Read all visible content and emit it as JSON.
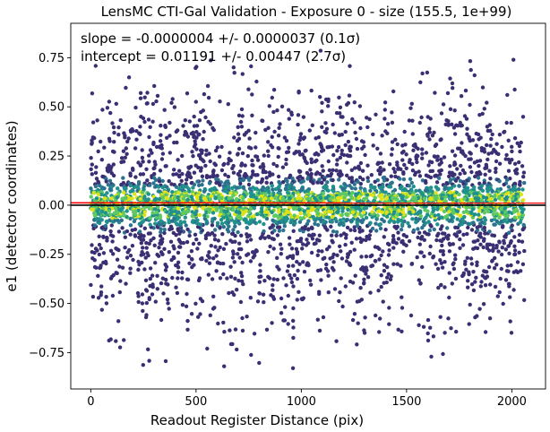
{
  "chart_data": {
    "type": "scatter",
    "title": "LensMC CTI-Gal Validation - Exposure 0 - size (155.5, 1e+99)",
    "xlabel": "Readout Register Distance (pix)",
    "ylabel": "e1 (detector coordinates)",
    "xlim": [
      -95,
      2160
    ],
    "ylim": [
      -0.935,
      0.925
    ],
    "x_ticks": [
      0,
      500,
      1000,
      1500,
      2000
    ],
    "y_ticks": [
      -0.75,
      -0.5,
      -0.25,
      0.0,
      0.25,
      0.5,
      0.75
    ],
    "x_tick_labels": [
      "0",
      "500",
      "1000",
      "1500",
      "2000"
    ],
    "y_tick_labels": [
      "−0.75",
      "−0.50",
      "−0.25",
      "0.00",
      "0.25",
      "0.50",
      "0.75"
    ],
    "grid": false,
    "colormap": "viridis (point density)",
    "scatter_points": {
      "approx_count": 8000,
      "x_range": [
        0,
        2060
      ],
      "y_range": [
        -0.86,
        0.79
      ],
      "density_peaks_y": [
        0.03,
        -0.03
      ]
    },
    "fit_line": {
      "slope": -4e-07,
      "intercept": 0.01191,
      "color": "#ff0000"
    },
    "reference_line": {
      "y": 0.0,
      "color": "#000000"
    },
    "annotations": [
      "slope = -0.0000004 +/- 0.0000037 (0.1σ)",
      "intercept = 0.01191 +/- 0.00447 (2.7σ)"
    ],
    "colors": {
      "low_density": "#3b2f74",
      "mid_density": "#21918c",
      "high_density": "#dde318",
      "fit_line": "#ff0000",
      "zero_line": "#000000"
    }
  }
}
